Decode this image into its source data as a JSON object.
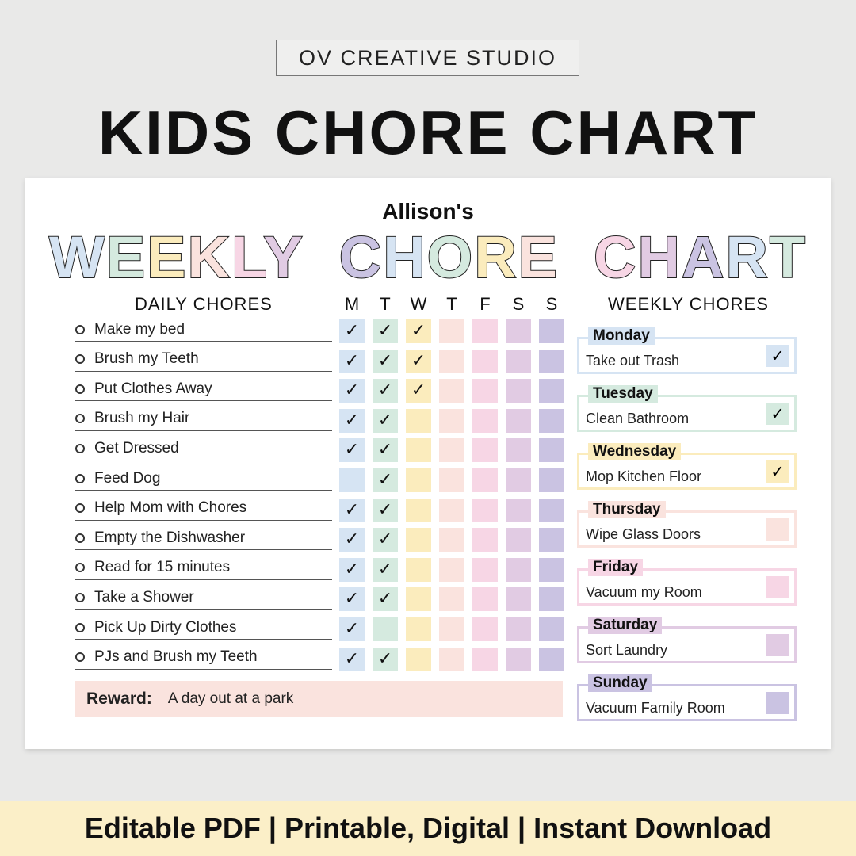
{
  "brand": "OV CREATIVE STUDIO",
  "title": "KIDS CHORE CHART",
  "chart": {
    "name": "Allison's",
    "heading_words": [
      "WEEKLY",
      "CHORE",
      "CHART"
    ],
    "daily_header": "DAILY CHORES",
    "weekly_header": "WEEKLY CHORES",
    "days": [
      "M",
      "T",
      "W",
      "T",
      "F",
      "S",
      "S"
    ],
    "day_colors": [
      "#d6e4f3",
      "#d5eadf",
      "#fbecbd",
      "#fae3de",
      "#f7d6e5",
      "#e1cbe3",
      "#cac3e2"
    ],
    "check_glyph": "✓",
    "daily": [
      {
        "label": "Make my bed",
        "checks": [
          1,
          1,
          1,
          0,
          0,
          0,
          0
        ]
      },
      {
        "label": "Brush my Teeth",
        "checks": [
          1,
          1,
          1,
          0,
          0,
          0,
          0
        ]
      },
      {
        "label": "Put Clothes Away",
        "checks": [
          1,
          1,
          1,
          0,
          0,
          0,
          0
        ]
      },
      {
        "label": "Brush my Hair",
        "checks": [
          1,
          1,
          0,
          0,
          0,
          0,
          0
        ]
      },
      {
        "label": "Get Dressed",
        "checks": [
          1,
          1,
          0,
          0,
          0,
          0,
          0
        ]
      },
      {
        "label": "Feed Dog",
        "checks": [
          0,
          1,
          0,
          0,
          0,
          0,
          0
        ]
      },
      {
        "label": "Help Mom with Chores",
        "checks": [
          1,
          1,
          0,
          0,
          0,
          0,
          0
        ]
      },
      {
        "label": "Empty the Dishwasher",
        "checks": [
          1,
          1,
          0,
          0,
          0,
          0,
          0
        ]
      },
      {
        "label": "Read for 15 minutes",
        "checks": [
          1,
          1,
          0,
          0,
          0,
          0,
          0
        ]
      },
      {
        "label": "Take a Shower",
        "checks": [
          1,
          1,
          0,
          0,
          0,
          0,
          0
        ]
      },
      {
        "label": "Pick Up Dirty Clothes",
        "checks": [
          1,
          0,
          0,
          0,
          0,
          0,
          0
        ]
      },
      {
        "label": "PJs and Brush my Teeth",
        "checks": [
          1,
          1,
          0,
          0,
          0,
          0,
          0
        ]
      }
    ],
    "reward_label": "Reward:",
    "reward_value": "A day out at a park",
    "weekly": [
      {
        "day": "Monday",
        "chore": "Take out Trash",
        "done": true
      },
      {
        "day": "Tuesday",
        "chore": "Clean Bathroom",
        "done": true
      },
      {
        "day": "Wednesday",
        "chore": "Mop Kitchen Floor",
        "done": true
      },
      {
        "day": "Thursday",
        "chore": "Wipe Glass Doors",
        "done": false
      },
      {
        "day": "Friday",
        "chore": "Vacuum my Room",
        "done": false
      },
      {
        "day": "Saturday",
        "chore": "Sort Laundry",
        "done": false
      },
      {
        "day": "Sunday",
        "chore": "Vacuum Family Room",
        "done": false
      }
    ]
  },
  "footer": "Editable PDF | Printable, Digital | Instant Download"
}
